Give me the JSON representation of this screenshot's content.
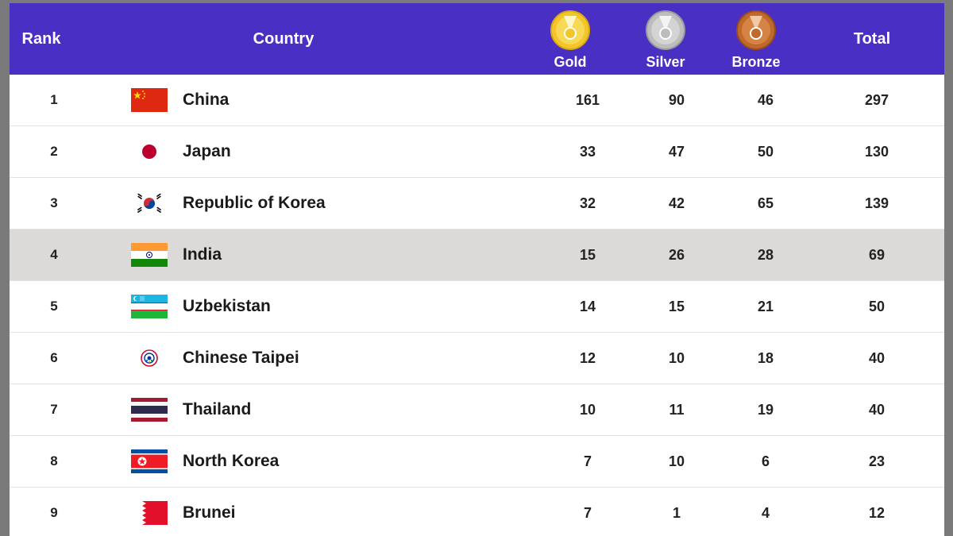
{
  "header": {
    "rank": "Rank",
    "country": "Country",
    "gold": "Gold",
    "silver": "Silver",
    "bronze": "Bronze",
    "total": "Total"
  },
  "colors": {
    "header_bg": "#4a2fc4",
    "highlight_row": "#dcd9d9",
    "gold": "#e8b820",
    "silver": "#a8a8a8",
    "bronze": "#b8622a"
  },
  "rows": [
    {
      "rank": "1",
      "country": "China",
      "flag": "china-flag-icon",
      "gold": "161",
      "silver": "90",
      "bronze": "46",
      "total": "297"
    },
    {
      "rank": "2",
      "country": "Japan",
      "flag": "japan-flag-icon",
      "gold": "33",
      "silver": "47",
      "bronze": "50",
      "total": "130"
    },
    {
      "rank": "3",
      "country": "Republic of Korea",
      "flag": "korea-flag-icon",
      "gold": "32",
      "silver": "42",
      "bronze": "65",
      "total": "139"
    },
    {
      "rank": "4",
      "country": "India",
      "flag": "india-flag-icon",
      "gold": "15",
      "silver": "26",
      "bronze": "28",
      "total": "69",
      "highlight": true
    },
    {
      "rank": "5",
      "country": "Uzbekistan",
      "flag": "uzbekistan-flag-icon",
      "gold": "14",
      "silver": "15",
      "bronze": "21",
      "total": "50"
    },
    {
      "rank": "6",
      "country": "Chinese Taipei",
      "flag": "chinese-taipei-flag-icon",
      "gold": "12",
      "silver": "10",
      "bronze": "18",
      "total": "40"
    },
    {
      "rank": "7",
      "country": "Thailand",
      "flag": "thailand-flag-icon",
      "gold": "10",
      "silver": "11",
      "bronze": "19",
      "total": "40"
    },
    {
      "rank": "8",
      "country": "North Korea",
      "flag": "north-korea-flag-icon",
      "gold": "7",
      "silver": "10",
      "bronze": "6",
      "total": "23"
    },
    {
      "rank": "9",
      "country": "Brunei",
      "flag": "brunei-flag-icon",
      "gold": "7",
      "silver": "1",
      "bronze": "4",
      "total": "12"
    }
  ]
}
